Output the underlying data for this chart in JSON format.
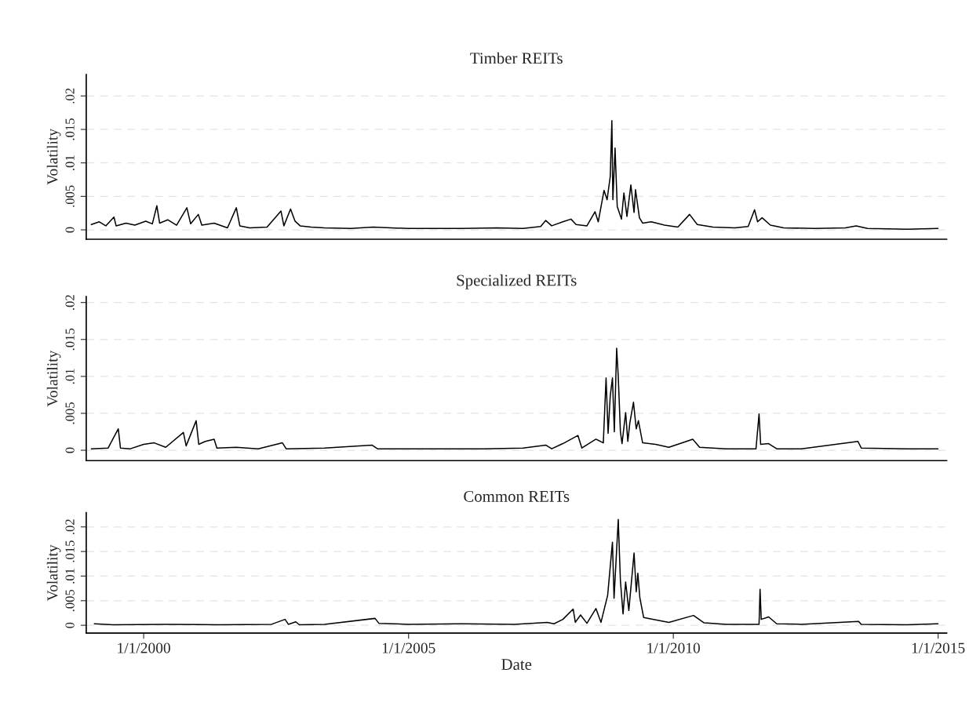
{
  "chart_data": [
    {
      "type": "line",
      "title": "Timber REITs",
      "ylabel": "Volatility",
      "grid": "y",
      "tick_labels": "y",
      "xlim": [
        "1998-12-01",
        "2015-03-01"
      ],
      "ylim": [
        -0.0014,
        0.0232
      ],
      "yticks": [
        0,
        {
          "value": 0.005,
          "label": ".005"
        },
        {
          "value": 0.01,
          "label": ".01"
        },
        {
          "value": 0.015,
          "label": ".015"
        },
        {
          "value": 0.02,
          "label": ".02"
        }
      ],
      "x": [
        "1999-01-05",
        "1999-03-01",
        "1999-04-15",
        "1999-06-10",
        "1999-06-25",
        "1999-09-01",
        "1999-11-01",
        "2000-01-15",
        "2000-03-01",
        "2000-04-01",
        "2000-04-20",
        "2000-06-15",
        "2000-08-15",
        "2000-10-25",
        "2000-11-20",
        "2001-01-12",
        "2001-02-05",
        "2001-05-01",
        "2001-08-01",
        "2001-10-01",
        "2001-10-25",
        "2002-01-01",
        "2002-05-01",
        "2002-08-05",
        "2002-08-25",
        "2002-10-10",
        "2002-11-10",
        "2002-12-15",
        "2003-03-01",
        "2003-06-01",
        "2003-12-01",
        "2004-05-01",
        "2005-01-01",
        "2006-01-01",
        "2006-09-01",
        "2007-03-01",
        "2007-07-01",
        "2007-08-05",
        "2007-09-15",
        "2007-12-01",
        "2008-01-26",
        "2008-03-01",
        "2008-05-15",
        "2008-07-10",
        "2008-08-01",
        "2008-09-10",
        "2008-10-01",
        "2008-10-23",
        "2008-11-03",
        "2008-11-10",
        "2008-11-25",
        "2008-12-10",
        "2009-01-08",
        "2009-01-25",
        "2009-02-15",
        "2009-03-14",
        "2009-04-05",
        "2009-04-15",
        "2009-05-12",
        "2009-06-03",
        "2009-08-01",
        "2009-11-01",
        "2010-02-01",
        "2010-04-23",
        "2010-06-15",
        "2010-10-01",
        "2011-03-01",
        "2011-06-01",
        "2011-07-15",
        "2011-08-05",
        "2011-09-05",
        "2011-11-01",
        "2012-02-01",
        "2012-09-01",
        "2013-04-01",
        "2013-06-15",
        "2013-09-01",
        "2014-06-01",
        "2014-12-31"
      ],
      "series": [
        {
          "color": "#000000",
          "values": [
            0.0008,
            0.0012,
            0.0006,
            0.0019,
            0.0006,
            0.001,
            0.0007,
            0.0013,
            0.0009,
            0.0036,
            0.001,
            0.0015,
            0.0007,
            0.0033,
            0.0009,
            0.0023,
            0.0007,
            0.001,
            0.0003,
            0.0033,
            0.0006,
            0.0003,
            0.0004,
            0.0028,
            0.0006,
            0.0031,
            0.0013,
            0.0006,
            0.0004,
            0.0003,
            0.0002,
            0.0004,
            0.0002,
            0.0002,
            0.0003,
            0.0002,
            0.0005,
            0.0014,
            0.0006,
            0.0012,
            0.0016,
            0.0008,
            0.0006,
            0.0027,
            0.0012,
            0.0059,
            0.0045,
            0.008,
            0.0163,
            0.0045,
            0.0122,
            0.0035,
            0.0016,
            0.0055,
            0.002,
            0.0067,
            0.0026,
            0.006,
            0.0018,
            0.001,
            0.0012,
            0.0007,
            0.0004,
            0.0023,
            0.0008,
            0.0004,
            0.0003,
            0.0005,
            0.003,
            0.0012,
            0.0018,
            0.0007,
            0.0003,
            0.0002,
            0.0003,
            0.0006,
            0.0002,
            0.0001,
            0.0002
          ]
        }
      ]
    },
    {
      "type": "line",
      "title": "Specialized REITs",
      "ylabel": "Volatility",
      "grid": "y",
      "tick_labels": "y",
      "xlim": [
        "1998-12-01",
        "2015-03-01"
      ],
      "ylim": [
        -0.0014,
        0.0208
      ],
      "yticks": [
        0,
        {
          "value": 0.005,
          "label": ".005"
        },
        {
          "value": 0.01,
          "label": ".01"
        },
        {
          "value": 0.015,
          "label": ".015"
        },
        {
          "value": 0.02,
          "label": ".02"
        }
      ],
      "x": [
        "1999-01-05",
        "1999-05-01",
        "1999-07-10",
        "1999-07-25",
        "1999-10-01",
        "2000-01-01",
        "2000-03-14",
        "2000-06-01",
        "2000-10-01",
        "2000-10-20",
        "2000-12-28",
        "2001-01-15",
        "2001-03-01",
        "2001-05-01",
        "2001-05-20",
        "2001-10-01",
        "2002-03-01",
        "2002-08-15",
        "2002-09-10",
        "2003-06-01",
        "2004-04-23",
        "2004-06-01",
        "2005-06-01",
        "2006-06-01",
        "2007-03-01",
        "2007-08-05",
        "2007-09-15",
        "2007-12-01",
        "2008-03-14",
        "2008-04-10",
        "2008-07-16",
        "2008-09-05",
        "2008-09-24",
        "2008-10-08",
        "2008-10-23",
        "2008-11-07",
        "2008-11-20",
        "2008-12-06",
        "2008-12-17",
        "2009-01-01",
        "2009-01-12",
        "2009-02-06",
        "2009-02-21",
        "2009-03-07",
        "2009-04-01",
        "2009-04-20",
        "2009-05-05",
        "2009-06-03",
        "2009-09-01",
        "2009-12-01",
        "2010-05-15",
        "2010-07-01",
        "2011-01-01",
        "2011-07-25",
        "2011-08-15",
        "2011-08-26",
        "2011-10-20",
        "2011-12-15",
        "2012-06-01",
        "2013-06-27",
        "2013-07-20",
        "2014-06-01",
        "2014-12-31"
      ],
      "series": [
        {
          "color": "#000000",
          "values": [
            0.0002,
            0.0003,
            0.0029,
            0.0003,
            0.0002,
            0.0008,
            0.001,
            0.0004,
            0.0024,
            0.0006,
            0.004,
            0.0008,
            0.0012,
            0.0015,
            0.0003,
            0.0004,
            0.0002,
            0.001,
            0.0002,
            0.0003,
            0.0007,
            0.0002,
            0.0002,
            0.0002,
            0.0003,
            0.0007,
            0.0002,
            0.0009,
            0.002,
            0.0003,
            0.0015,
            0.001,
            0.0098,
            0.0023,
            0.0074,
            0.0098,
            0.0025,
            0.0138,
            0.01,
            0.0025,
            0.0009,
            0.0051,
            0.0012,
            0.0037,
            0.0065,
            0.0029,
            0.004,
            0.001,
            0.0008,
            0.0004,
            0.0015,
            0.0004,
            0.0002,
            0.0002,
            0.0049,
            0.0008,
            0.0009,
            0.0002,
            0.0002,
            0.0012,
            0.0003,
            0.0002,
            0.0002
          ]
        }
      ]
    },
    {
      "type": "line",
      "title": "Common REITs",
      "ylabel": "Volatility",
      "xlabel": "Date",
      "grid": "y",
      "xlim": [
        "1998-12-01",
        "2015-03-01"
      ],
      "ylim": [
        -0.0016,
        0.0229
      ],
      "xticks": [
        {
          "value": "2000-01-01",
          "label": "1/1/2000"
        },
        {
          "value": "2005-01-01",
          "label": "1/1/2005"
        },
        {
          "value": "2010-01-01",
          "label": "1/1/2010"
        },
        {
          "value": "2015-01-01",
          "label": "1/1/2015"
        }
      ],
      "yticks": [
        0,
        {
          "value": 0.005,
          "label": ".005"
        },
        {
          "value": 0.01,
          "label": ".01"
        },
        {
          "value": 0.015,
          "label": ".015"
        },
        {
          "value": 0.02,
          "label": ".02"
        }
      ],
      "x": [
        "1999-01-26",
        "1999-06-01",
        "2000-06-01",
        "2001-06-01",
        "2002-06-01",
        "2002-09-02",
        "2002-09-25",
        "2002-11-15",
        "2002-12-10",
        "2003-06-01",
        "2004-05-15",
        "2004-06-10",
        "2005-01-01",
        "2006-01-01",
        "2007-01-01",
        "2007-08-15",
        "2007-10-01",
        "2007-12-01",
        "2008-02-10",
        "2008-02-25",
        "2008-04-01",
        "2008-05-15",
        "2008-07-16",
        "2008-08-20",
        "2008-10-05",
        "2008-11-07",
        "2008-11-18",
        "2008-12-17",
        "2009-01-01",
        "2009-01-19",
        "2009-02-06",
        "2009-02-28",
        "2009-04-05",
        "2009-04-20",
        "2009-05-01",
        "2009-05-15",
        "2009-06-10",
        "2009-09-01",
        "2009-12-01",
        "2010-05-20",
        "2010-08-01",
        "2011-01-01",
        "2011-08-15",
        "2011-08-22",
        "2011-08-30",
        "2011-10-20",
        "2011-12-15",
        "2012-06-01",
        "2013-07-01",
        "2013-07-20",
        "2014-06-01",
        "2014-12-31"
      ],
      "series": [
        {
          "color": "#000000",
          "values": [
            0.0003,
            0.0001,
            0.0002,
            0.0001,
            0.0002,
            0.0012,
            0.0002,
            0.0007,
            0.0001,
            0.0002,
            0.0014,
            0.0004,
            0.0002,
            0.0003,
            0.0002,
            0.0006,
            0.0003,
            0.0012,
            0.0033,
            0.0006,
            0.0021,
            0.0004,
            0.0034,
            0.0006,
            0.0061,
            0.0169,
            0.0055,
            0.0215,
            0.009,
            0.0023,
            0.0088,
            0.003,
            0.0147,
            0.0068,
            0.0106,
            0.0056,
            0.0016,
            0.0011,
            0.0006,
            0.002,
            0.0005,
            0.0002,
            0.0002,
            0.0073,
            0.0012,
            0.0017,
            0.0003,
            0.0002,
            0.0008,
            0.0002,
            0.0001,
            0.0003
          ]
        }
      ]
    }
  ]
}
